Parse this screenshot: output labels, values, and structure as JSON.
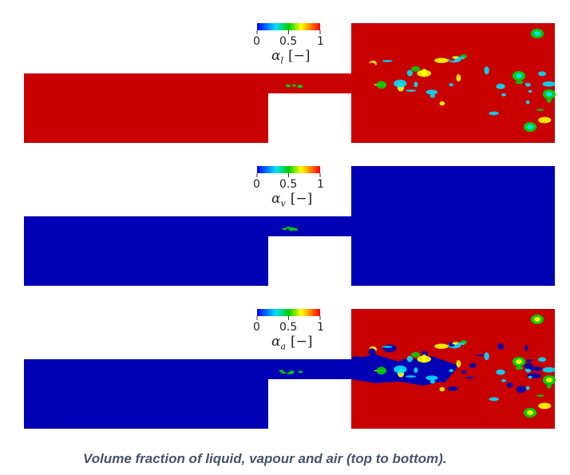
{
  "colors": {
    "high": "#c80000",
    "low": "#0000b4",
    "caption": "#44546a"
  },
  "colorbar": {
    "ticks": [
      "0",
      "0.5",
      "1"
    ],
    "colormap": "jet"
  },
  "panels": [
    {
      "symbol": "α",
      "subscript": "l",
      "unit": "[−]",
      "background_phase": "high",
      "jet_phase": "high"
    },
    {
      "symbol": "α",
      "subscript": "v",
      "unit": "[−]",
      "background_phase": "low",
      "jet_phase": "low"
    },
    {
      "symbol": "α",
      "subscript": "a",
      "unit": "[−]",
      "background_phase": "high",
      "jet_phase": "low"
    }
  ],
  "caption": "Volume fraction of liquid, vapour and air (top to bottom)."
}
